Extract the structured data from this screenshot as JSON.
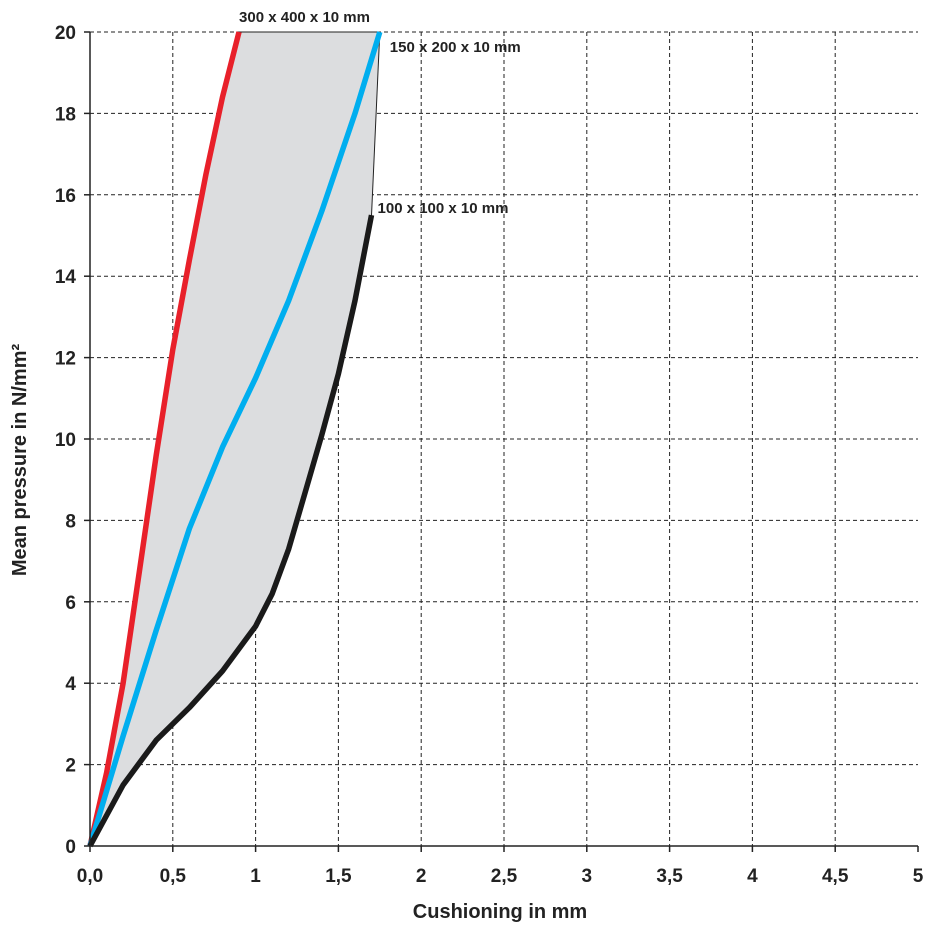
{
  "chart_data": {
    "type": "line",
    "title": "",
    "xlabel": "Cushioning in mm",
    "ylabel": "Mean pressure in N/mm²",
    "xlim": [
      0,
      5
    ],
    "ylim": [
      0,
      20
    ],
    "grid": true,
    "shaded_region": true,
    "x_ticks": [
      "0,0",
      "0,5",
      "1",
      "1,5",
      "2",
      "2,5",
      "3",
      "3,5",
      "4",
      "4,5",
      "5"
    ],
    "y_ticks": [
      "0",
      "2",
      "4",
      "6",
      "8",
      "10",
      "12",
      "14",
      "16",
      "18",
      "20"
    ],
    "series": [
      {
        "name": "300 x 400 x 10 mm",
        "color": "#e8202a",
        "points": [
          [
            0,
            0
          ],
          [
            0.1,
            1.8
          ],
          [
            0.2,
            4.0
          ],
          [
            0.3,
            6.8
          ],
          [
            0.4,
            9.6
          ],
          [
            0.5,
            12.2
          ],
          [
            0.6,
            14.4
          ],
          [
            0.7,
            16.5
          ],
          [
            0.8,
            18.4
          ],
          [
            0.9,
            20
          ]
        ]
      },
      {
        "name": "150 x 200 x 10 mm",
        "color": "#00aeef",
        "points": [
          [
            0,
            0
          ],
          [
            0.2,
            2.7
          ],
          [
            0.4,
            5.3
          ],
          [
            0.6,
            7.8
          ],
          [
            0.8,
            9.8
          ],
          [
            1.0,
            11.5
          ],
          [
            1.2,
            13.4
          ],
          [
            1.4,
            15.6
          ],
          [
            1.6,
            18.0
          ],
          [
            1.75,
            20
          ]
        ]
      },
      {
        "name": "100 x 100 x 10 mm",
        "color": "#1a1a1a",
        "points": [
          [
            0,
            0
          ],
          [
            0.2,
            1.5
          ],
          [
            0.4,
            2.6
          ],
          [
            0.6,
            3.4
          ],
          [
            0.8,
            4.3
          ],
          [
            1.0,
            5.4
          ],
          [
            1.1,
            6.2
          ],
          [
            1.2,
            7.3
          ],
          [
            1.3,
            8.7
          ],
          [
            1.4,
            10.1
          ],
          [
            1.5,
            11.6
          ],
          [
            1.6,
            13.4
          ],
          [
            1.7,
            15.5
          ]
        ]
      }
    ]
  }
}
